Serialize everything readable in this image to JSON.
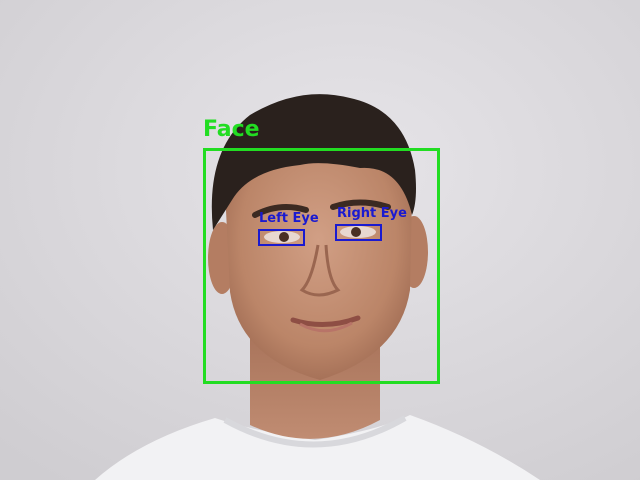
{
  "colors": {
    "background": "#dcdadd",
    "face_box": "#22dd22",
    "eye_box": "#1a1ad0",
    "skin": "#c08c72",
    "hair": "#2a211d",
    "shirt": "#f2f2f4"
  },
  "detections": {
    "face": {
      "label": "Face"
    },
    "left_eye": {
      "label": "Left Eye"
    },
    "right_eye": {
      "label": "Right Eye"
    }
  }
}
